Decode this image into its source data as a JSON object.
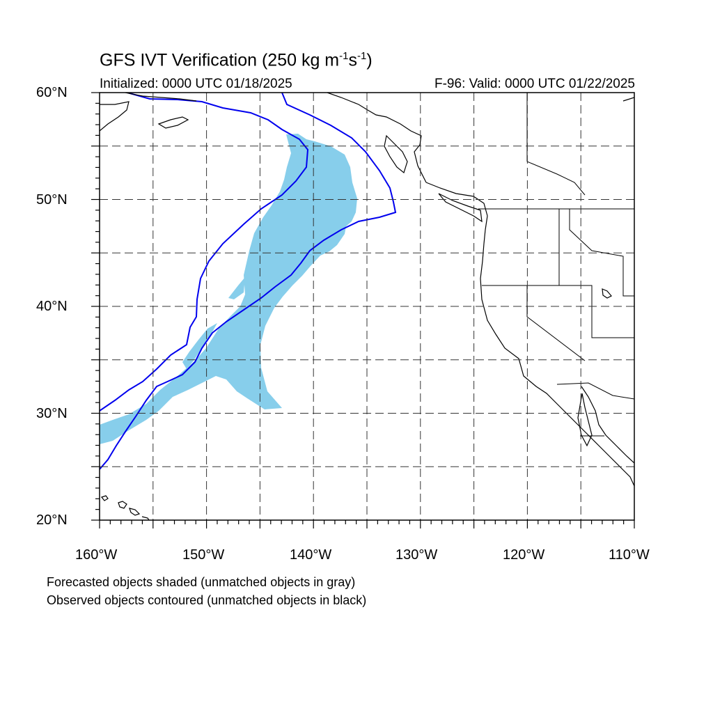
{
  "header": {
    "title_main": "GFS IVT Verification (250 kg m",
    "title_exp1": "-1",
    "title_mid": "s",
    "title_exp2": "-1",
    "title_end": ")",
    "initialized": "Initialized: 0000 UTC 01/18/2025",
    "valid": "F-96: Valid: 0000 UTC 01/22/2025"
  },
  "map": {
    "projection": "cylindrical-equidistant",
    "lon_range": [
      -160,
      -110
    ],
    "lat_range": [
      20,
      60
    ],
    "grid": "dashed, every 5 degrees",
    "forecast_fill_color": "#87CEEB",
    "observed_contour_color": "#0000EE",
    "coast_color": "#000000",
    "lat_labels": [
      "60°N",
      "50°N",
      "40°N",
      "30°N",
      "20°N"
    ],
    "lon_labels": [
      "160°W",
      "150°W",
      "140°W",
      "130°W",
      "120°W",
      "110°W"
    ]
  },
  "footer": {
    "line1": "Forecasted objects shaded (unmatched objects in gray)",
    "line2": "Observed objects contoured (unmatched objects in black)"
  }
}
